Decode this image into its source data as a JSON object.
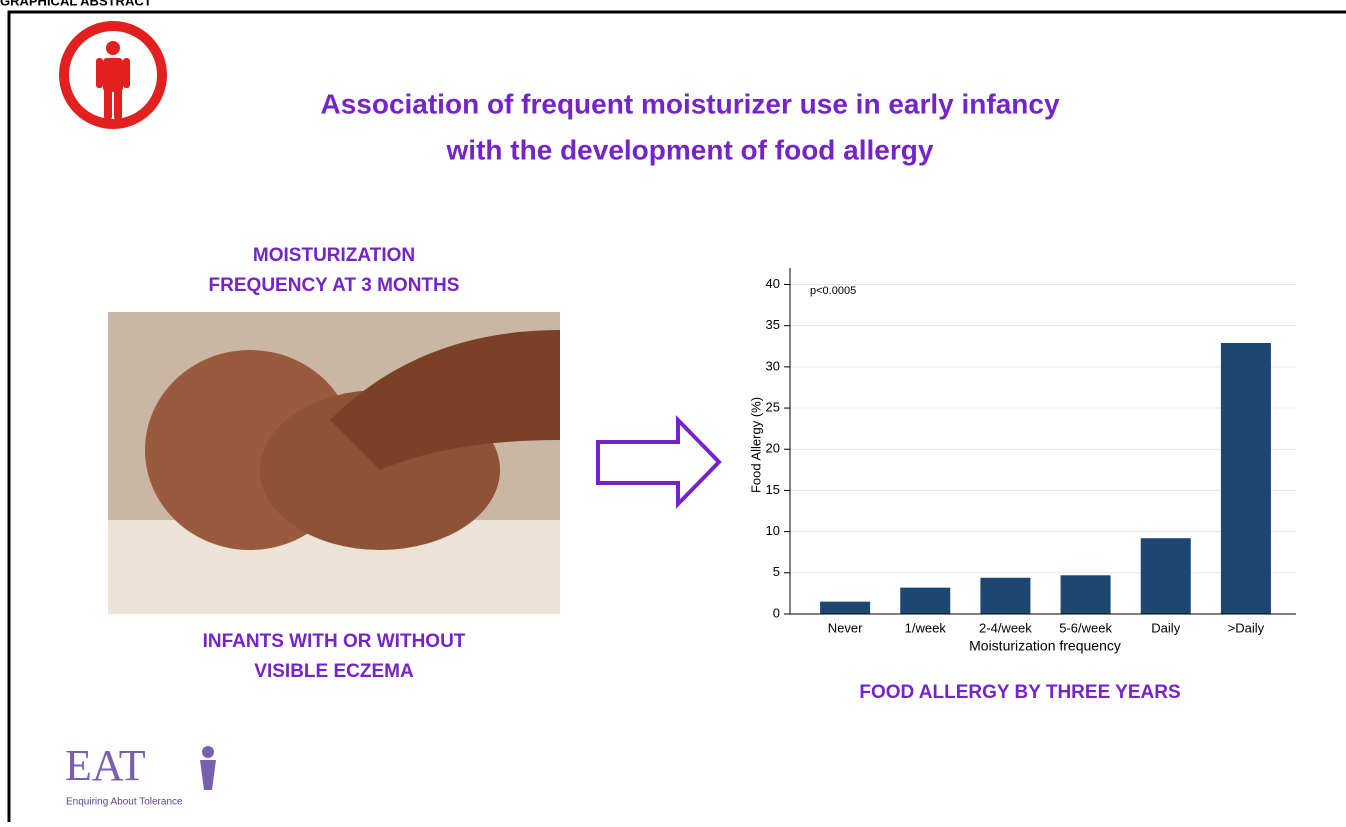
{
  "header": "GRAPHICAL ABSTRACT",
  "title": [
    "Association of frequent moisturizer use in early infancy",
    "with the development of food allergy"
  ],
  "left": {
    "top": [
      "MOISTURIZATION",
      "FREQUENCY AT 3 MONTHS"
    ],
    "bottom": [
      "INFANTS WITH OR WITHOUT",
      "VISIBLE ECZEMA"
    ]
  },
  "chart_data": {
    "type": "bar",
    "annotation": "p<0.0005",
    "x_label": "Moisturization frequency",
    "y_label": "Food Allergy (%)",
    "categories": [
      "Never",
      "1/week",
      "2-4/week",
      "5-6/week",
      "Daily",
      ">Daily"
    ],
    "values": [
      1.5,
      3.2,
      4.4,
      4.7,
      9.2,
      32.9
    ],
    "color": "#1d4670",
    "ylim": [
      0,
      42
    ],
    "yticks": [
      0,
      5,
      10,
      15,
      20,
      25,
      30,
      35,
      40
    ],
    "grid": true
  },
  "chart_caption": "FOOD ALLERGY BY THREE YEARS",
  "logo": {
    "name": "EAT",
    "tagline": "Enquiring About Tolerance"
  }
}
